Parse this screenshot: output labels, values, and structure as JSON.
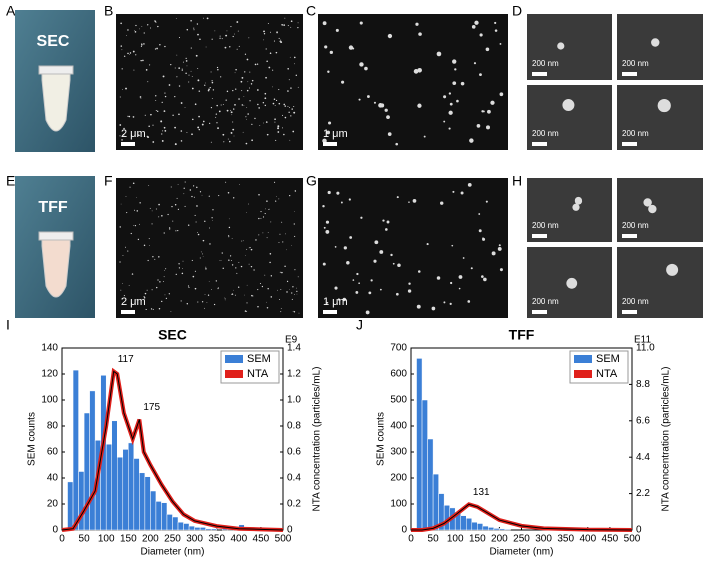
{
  "figure": {
    "panel_labels": [
      "A",
      "B",
      "C",
      "D",
      "E",
      "F",
      "G",
      "H",
      "I",
      "J"
    ],
    "tube_labels": [
      "SEC",
      "TFF"
    ],
    "scale_labels": [
      "2 μm",
      "1 μm",
      "200 nm",
      "200 nm",
      "200 nm",
      "200 nm",
      "2 μm",
      "1 μm",
      "200 nm",
      "200 nm",
      "200 nm",
      "200 nm"
    ]
  },
  "chart_data": [
    {
      "type": "histogram",
      "title": "SEC",
      "xlabel": "Diameter (nm)",
      "ylabel": "SEM counts",
      "y2label": "NTA concentration (particles/mL)",
      "y2_exponent": "E9",
      "bins": [
        12.5,
        25,
        37.5,
        50,
        62.5,
        75,
        87.5,
        100,
        112.5,
        125,
        137.5,
        150,
        162.5,
        175,
        187.5,
        200,
        212.5,
        225,
        237.5,
        250,
        262.5,
        275,
        287.5,
        300,
        312.5,
        325,
        337.5,
        350,
        362.5,
        375,
        387.5,
        400,
        412.5
      ],
      "series": [
        {
          "name": "SEM",
          "color": "#3b7fd6",
          "values": [
            37,
            123,
            45,
            90,
            107,
            69,
            119,
            66,
            84,
            56,
            62,
            67,
            55,
            44,
            41,
            30,
            22,
            21,
            12,
            10,
            6,
            5,
            3,
            2,
            2,
            1,
            1,
            0,
            1,
            1,
            1,
            4
          ]
        },
        {
          "name": "NTA",
          "color": "#e0201b",
          "axis": "y2",
          "x": [
            0,
            25,
            50,
            75,
            100,
            117,
            125,
            140,
            160,
            175,
            185,
            200,
            225,
            250,
            275,
            300,
            350,
            400,
            450,
            500
          ],
          "values": [
            0,
            0.01,
            0.15,
            0.3,
            0.8,
            1.22,
            1.2,
            0.9,
            0.7,
            0.85,
            0.6,
            0.5,
            0.35,
            0.22,
            0.12,
            0.07,
            0.03,
            0.01,
            0.005,
            0
          ]
        }
      ],
      "annotations": [
        {
          "label": "117",
          "x": 117
        },
        {
          "label": "175",
          "x": 175
        }
      ],
      "xlim": [
        0,
        500
      ],
      "xticks": [
        0,
        50,
        100,
        150,
        200,
        250,
        300,
        350,
        400,
        450,
        500
      ],
      "ylim": [
        0,
        140
      ],
      "yticks": [
        0,
        20,
        40,
        60,
        80,
        100,
        120,
        140
      ],
      "y2lim": [
        0,
        1.4
      ],
      "y2ticks": [
        0,
        0.2,
        0.4,
        0.6,
        0.8,
        {
          "value": 1,
          "label": "1.0"
        },
        1.2,
        1.4
      ],
      "legend": "top-right"
    },
    {
      "type": "histogram",
      "title": "TFF",
      "xlabel": "Diameter (nm)",
      "ylabel": "SEM counts",
      "y2label": "NTA concentration (particles/mL)",
      "y2_exponent": "E11",
      "bins": [
        12.5,
        25,
        37.5,
        50,
        62.5,
        75,
        87.5,
        100,
        112.5,
        125,
        137.5,
        150,
        162.5,
        175,
        187.5,
        200,
        212.5,
        225
      ],
      "series": [
        {
          "name": "SEM",
          "color": "#3b7fd6",
          "values": [
            660,
            500,
            350,
            215,
            140,
            95,
            85,
            70,
            55,
            45,
            30,
            25,
            15,
            10,
            6,
            5,
            3
          ]
        },
        {
          "name": "NTA",
          "color": "#e0201b",
          "axis": "y2",
          "x": [
            0,
            25,
            50,
            75,
            100,
            131,
            150,
            175,
            200,
            250,
            300,
            400,
            500
          ],
          "values": [
            0,
            0,
            0.1,
            0.4,
            0.9,
            1.55,
            1.4,
            1.0,
            0.6,
            0.25,
            0.1,
            0.02,
            0
          ]
        }
      ],
      "annotations": [
        {
          "label": "131",
          "x": 131
        }
      ],
      "xlim": [
        0,
        500
      ],
      "xticks": [
        0,
        50,
        100,
        150,
        200,
        250,
        300,
        350,
        400,
        450,
        500
      ],
      "ylim": [
        0,
        700
      ],
      "yticks": [
        0,
        100,
        200,
        300,
        400,
        500,
        600,
        700
      ],
      "y2lim": [
        0,
        11
      ],
      "y2ticks": [
        0,
        2.2,
        4.4,
        6.6,
        8.8,
        {
          "value": 11,
          "label": "11.0"
        }
      ],
      "legend": "top-right"
    }
  ]
}
